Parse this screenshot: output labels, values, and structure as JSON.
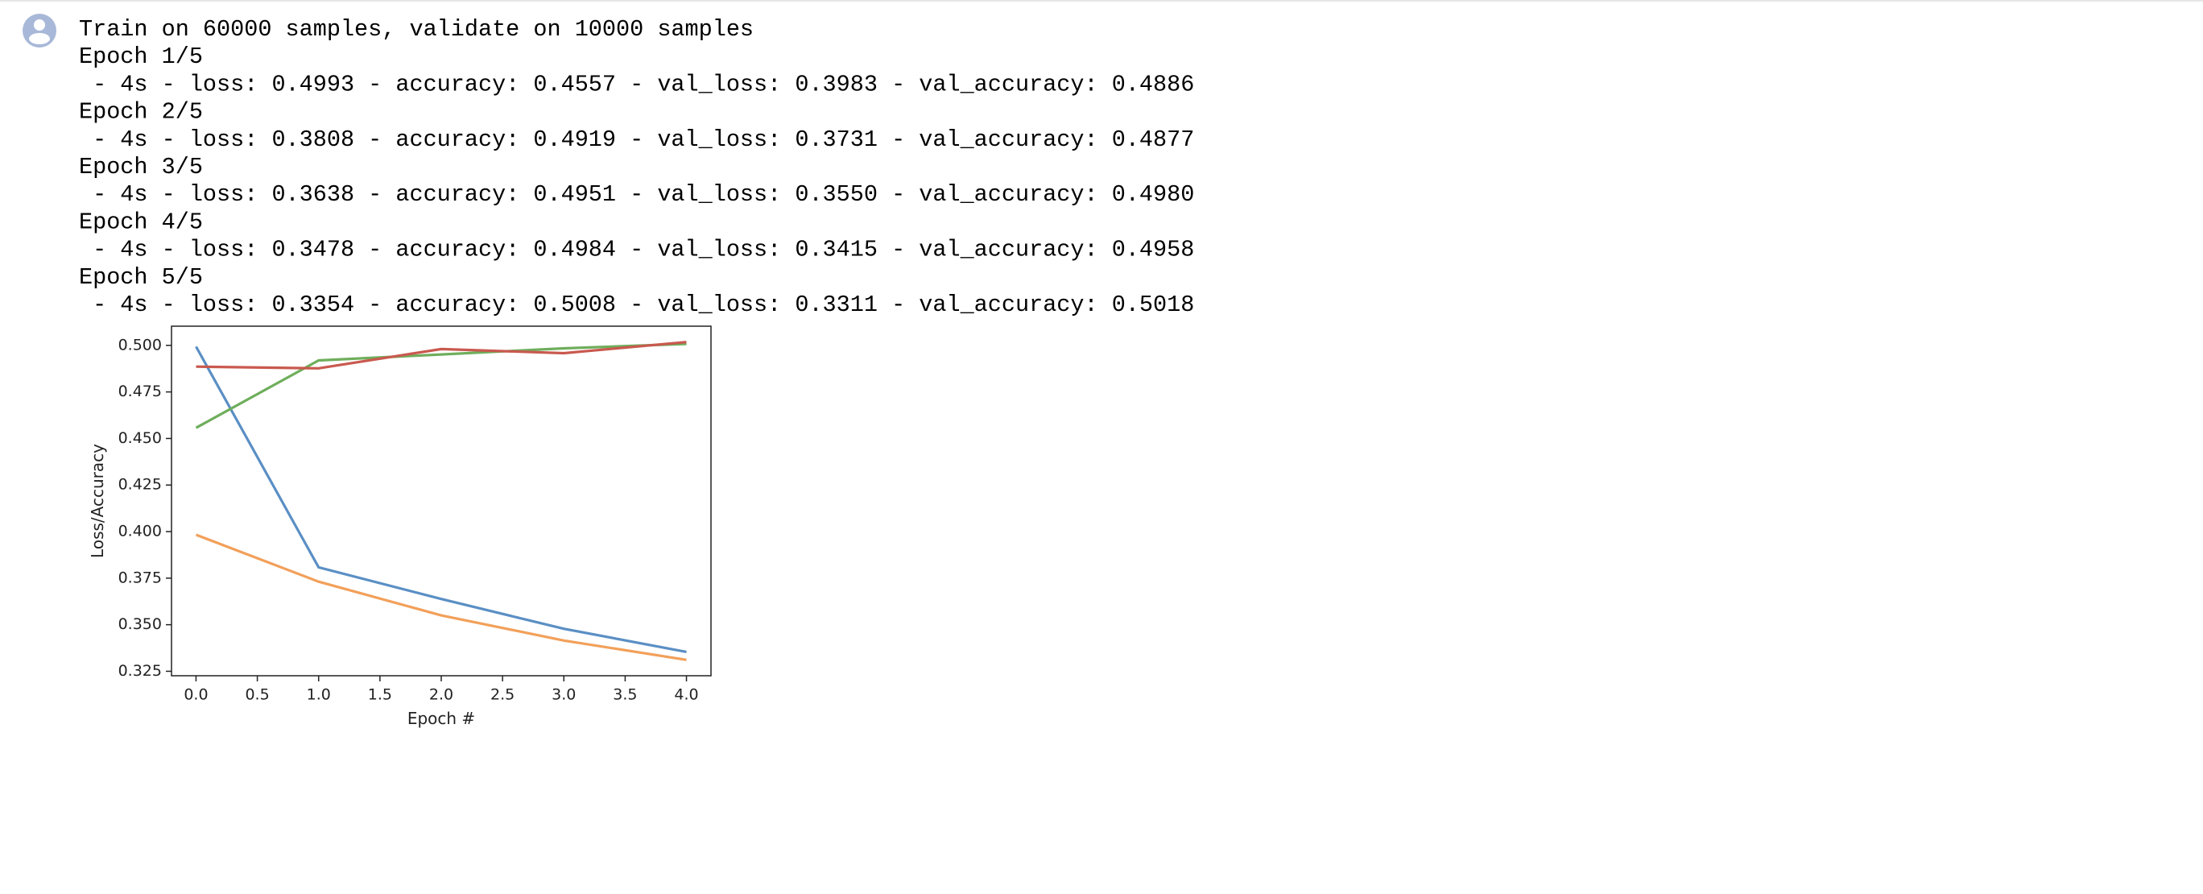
{
  "output": {
    "lines": [
      "Train on 60000 samples, validate on 10000 samples",
      "Epoch 1/5",
      " - 4s - loss: 0.4993 - accuracy: 0.4557 - val_loss: 0.3983 - val_accuracy: 0.4886",
      "Epoch 2/5",
      " - 4s - loss: 0.3808 - accuracy: 0.4919 - val_loss: 0.3731 - val_accuracy: 0.4877",
      "Epoch 3/5",
      " - 4s - loss: 0.3638 - accuracy: 0.4951 - val_loss: 0.3550 - val_accuracy: 0.4980",
      "Epoch 4/5",
      " - 4s - loss: 0.3478 - accuracy: 0.4984 - val_loss: 0.3415 - val_accuracy: 0.4958",
      "Epoch 5/5",
      " - 4s - loss: 0.3354 - accuracy: 0.5008 - val_loss: 0.3311 - val_accuracy: 0.5018"
    ]
  },
  "chart_data": {
    "type": "line",
    "xlabel": "Epoch #",
    "ylabel": "Loss/Accuracy",
    "x": [
      0,
      1,
      2,
      3,
      4
    ],
    "series": [
      {
        "color": "#5a8fc4",
        "values": [
          0.4993,
          0.3808,
          0.3638,
          0.3478,
          0.3354
        ]
      },
      {
        "color": "#f2a05a",
        "values": [
          0.3983,
          0.3731,
          0.355,
          0.3415,
          0.3311
        ]
      },
      {
        "color": "#6fae5c",
        "values": [
          0.4557,
          0.4919,
          0.4951,
          0.4984,
          0.5008
        ]
      },
      {
        "color": "#c9594f",
        "values": [
          0.4886,
          0.4877,
          0.498,
          0.4958,
          0.5018
        ]
      }
    ],
    "xlim": [
      -0.2,
      4.2
    ],
    "xticks": [
      {
        "value": 0,
        "label": "0.0"
      },
      0.5,
      {
        "value": 1,
        "label": "1.0"
      },
      1.5,
      {
        "value": 2,
        "label": "2.0"
      },
      2.5,
      {
        "value": 3,
        "label": "3.0"
      },
      3.5,
      {
        "value": 4,
        "label": "4.0"
      }
    ],
    "ylim": [
      0.3226,
      0.5103
    ],
    "yticks": [
      0.325,
      {
        "value": 0.35,
        "label": "0.350"
      },
      0.375,
      {
        "value": 0.4,
        "label": "0.400"
      },
      0.425,
      {
        "value": 0.45,
        "label": "0.450"
      },
      0.475,
      {
        "value": 0.5,
        "label": "0.500"
      }
    ],
    "grid": false
  }
}
